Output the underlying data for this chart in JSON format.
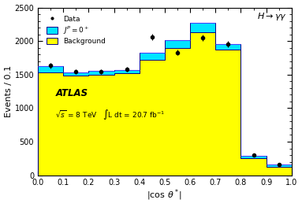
{
  "bin_edges": [
    0.0,
    0.1,
    0.2,
    0.3,
    0.4,
    0.5,
    0.6,
    0.7,
    0.8,
    0.9,
    1.0
  ],
  "background_values": [
    1530,
    1480,
    1500,
    1520,
    1720,
    1900,
    2130,
    1870,
    250,
    130
  ],
  "signal_total_values": [
    1625,
    1530,
    1560,
    1565,
    1830,
    2010,
    2270,
    1960,
    290,
    155
  ],
  "data_x": [
    0.05,
    0.15,
    0.25,
    0.35,
    0.45,
    0.55,
    0.65,
    0.75,
    0.85,
    0.95
  ],
  "data_y": [
    1635,
    1545,
    1545,
    1580,
    2060,
    1830,
    2050,
    1955,
    300,
    165
  ],
  "data_yerr": [
    42,
    40,
    40,
    40,
    46,
    44,
    46,
    45,
    18,
    14
  ],
  "background_color": "#ffff00",
  "background_edge_color": "#00008b",
  "signal_color": "#00e5ff",
  "signal_edge_color": "#00008b",
  "data_color": "black",
  "ylabel": "Events / 0.1",
  "ylim": [
    0,
    2500
  ],
  "xlim": [
    0,
    1
  ],
  "legend_background": "Background"
}
